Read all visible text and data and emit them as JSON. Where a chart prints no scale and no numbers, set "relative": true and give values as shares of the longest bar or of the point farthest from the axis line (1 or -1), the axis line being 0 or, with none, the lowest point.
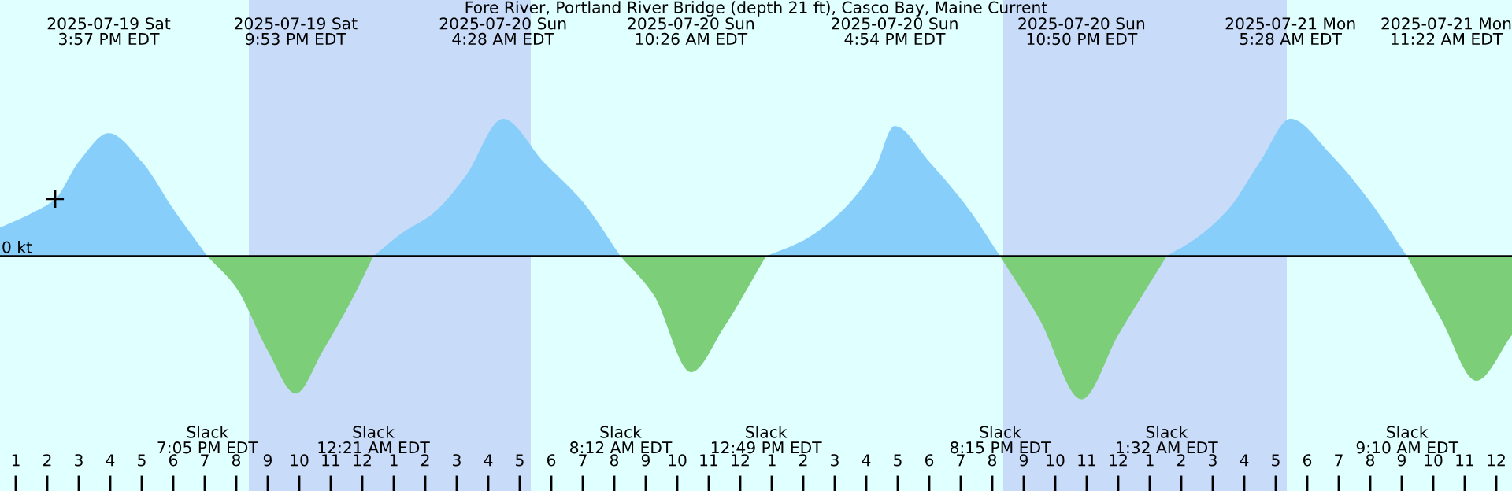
{
  "chart_data": {
    "type": "area",
    "relative": true,
    "title": "Fore River, Portland River Bridge (depth 21 ft), Casco Bay, Maine Current",
    "xlim": [
      "2025-07-19T12:30",
      "2025-07-21T12:30"
    ],
    "xticks": [
      {
        "value": "2025-07-19T13:00",
        "label": "1"
      },
      {
        "value": "2025-07-19T14:00",
        "label": "2"
      },
      {
        "value": "2025-07-19T15:00",
        "label": "3"
      },
      {
        "value": "2025-07-19T16:00",
        "label": "4"
      },
      {
        "value": "2025-07-19T17:00",
        "label": "5"
      },
      {
        "value": "2025-07-19T18:00",
        "label": "6"
      },
      {
        "value": "2025-07-19T19:00",
        "label": "7"
      },
      {
        "value": "2025-07-19T20:00",
        "label": "8"
      },
      {
        "value": "2025-07-19T21:00",
        "label": "9"
      },
      {
        "value": "2025-07-19T22:00",
        "label": "10"
      },
      {
        "value": "2025-07-19T23:00",
        "label": "11"
      },
      {
        "value": "2025-07-20T00:00",
        "label": "12"
      },
      {
        "value": "2025-07-20T01:00",
        "label": "1"
      },
      {
        "value": "2025-07-20T02:00",
        "label": "2"
      },
      {
        "value": "2025-07-20T03:00",
        "label": "3"
      },
      {
        "value": "2025-07-20T04:00",
        "label": "4"
      },
      {
        "value": "2025-07-20T05:00",
        "label": "5"
      },
      {
        "value": "2025-07-20T06:00",
        "label": "6"
      },
      {
        "value": "2025-07-20T07:00",
        "label": "7"
      },
      {
        "value": "2025-07-20T08:00",
        "label": "8"
      },
      {
        "value": "2025-07-20T09:00",
        "label": "9"
      },
      {
        "value": "2025-07-20T10:00",
        "label": "10"
      },
      {
        "value": "2025-07-20T11:00",
        "label": "11"
      },
      {
        "value": "2025-07-20T12:00",
        "label": "12"
      },
      {
        "value": "2025-07-20T13:00",
        "label": "1"
      },
      {
        "value": "2025-07-20T14:00",
        "label": "2"
      },
      {
        "value": "2025-07-20T15:00",
        "label": "3"
      },
      {
        "value": "2025-07-20T16:00",
        "label": "4"
      },
      {
        "value": "2025-07-20T17:00",
        "label": "5"
      },
      {
        "value": "2025-07-20T18:00",
        "label": "6"
      },
      {
        "value": "2025-07-20T19:00",
        "label": "7"
      },
      {
        "value": "2025-07-20T20:00",
        "label": "8"
      },
      {
        "value": "2025-07-20T21:00",
        "label": "9"
      },
      {
        "value": "2025-07-20T22:00",
        "label": "10"
      },
      {
        "value": "2025-07-20T23:00",
        "label": "11"
      },
      {
        "value": "2025-07-21T00:00",
        "label": "12"
      },
      {
        "value": "2025-07-21T01:00",
        "label": "1"
      },
      {
        "value": "2025-07-21T02:00",
        "label": "2"
      },
      {
        "value": "2025-07-21T03:00",
        "label": "3"
      },
      {
        "value": "2025-07-21T04:00",
        "label": "4"
      },
      {
        "value": "2025-07-21T05:00",
        "label": "5"
      },
      {
        "value": "2025-07-21T06:00",
        "label": "6"
      },
      {
        "value": "2025-07-21T07:00",
        "label": "7"
      },
      {
        "value": "2025-07-21T08:00",
        "label": "8"
      },
      {
        "value": "2025-07-21T09:00",
        "label": "9"
      },
      {
        "value": "2025-07-21T10:00",
        "label": "10"
      },
      {
        "value": "2025-07-21T11:00",
        "label": "11"
      },
      {
        "value": "2025-07-21T12:00",
        "label": "12"
      }
    ],
    "bands": [
      {
        "axis": "x",
        "from": "2025-07-19T20:24",
        "to": "2025-07-20T05:21",
        "color": "#c8dcfa"
      },
      {
        "axis": "x",
        "from": "2025-07-20T20:21",
        "to": "2025-07-21T05:21",
        "color": "#c8dcfa"
      }
    ],
    "ref_lines": [
      {
        "axis": "y",
        "value": 0,
        "label": "0 kt",
        "color": "#000000"
      }
    ],
    "series": [
      {
        "color": "#87cefa",
        "x": [
          "2025-07-19T12:30",
          "2025-07-19T13:30",
          "2025-07-19T14:15",
          "2025-07-19T15:00",
          "2025-07-19T15:57",
          "2025-07-19T17:00",
          "2025-07-19T18:00",
          "2025-07-19T19:05",
          null,
          "2025-07-20T00:21",
          "2025-07-20T01:15",
          "2025-07-20T02:15",
          "2025-07-20T03:15",
          "2025-07-20T04:28",
          "2025-07-20T05:45",
          "2025-07-20T07:00",
          "2025-07-20T08:12",
          null,
          "2025-07-20T12:49",
          "2025-07-20T14:00",
          "2025-07-20T15:00",
          "2025-07-20T16:15",
          "2025-07-20T16:54",
          "2025-07-20T18:00",
          "2025-07-20T19:15",
          "2025-07-20T20:15",
          null,
          "2025-07-21T01:32",
          "2025-07-21T02:30",
          "2025-07-21T03:30",
          "2025-07-21T04:30",
          "2025-07-21T05:28",
          "2025-07-21T06:45",
          "2025-07-21T08:00",
          "2025-07-21T09:10"
        ],
        "values": [
          0.2,
          0.3,
          0.4,
          0.66,
          0.86,
          0.66,
          0.33,
          0,
          null,
          0,
          0.16,
          0.3,
          0.55,
          0.96,
          0.66,
          0.38,
          0,
          null,
          0,
          0.11,
          0.27,
          0.6,
          0.91,
          0.66,
          0.33,
          0,
          null,
          0,
          0.13,
          0.33,
          0.66,
          0.96,
          0.71,
          0.38,
          0
        ]
      },
      {
        "color": "#7ccf78",
        "x": [
          "2025-07-19T19:05",
          "2025-07-19T20:00",
          "2025-07-19T21:00",
          "2025-07-19T21:53",
          "2025-07-19T22:45",
          "2025-07-19T23:45",
          "2025-07-20T00:21",
          null,
          "2025-07-20T08:12",
          "2025-07-20T09:15",
          "2025-07-20T10:26",
          "2025-07-20T11:30",
          "2025-07-20T12:49",
          null,
          "2025-07-20T20:15",
          "2025-07-20T21:30",
          "2025-07-20T22:50",
          "2025-07-21T00:00",
          "2025-07-21T01:32",
          null,
          "2025-07-21T09:10",
          "2025-07-21T10:15",
          "2025-07-21T11:22",
          "2025-07-21T12:30"
        ],
        "values": [
          0,
          -0.22,
          -0.66,
          -0.96,
          -0.66,
          -0.27,
          0,
          null,
          0,
          -0.27,
          -0.81,
          -0.49,
          0,
          null,
          0,
          -0.44,
          -1.0,
          -0.55,
          0,
          null,
          0,
          -0.44,
          -0.87,
          -0.55
        ]
      },
      {
        "type": "scatter",
        "color": "#000000",
        "marker": "cross",
        "x": [
          "2025-07-19T14:15"
        ],
        "values": [
          0.4
        ]
      }
    ],
    "annotations": [
      "2025-07-19 Sat\n3:57 PM EDT",
      "Slack\n7:05 PM EDT",
      "2025-07-19 Sat\n9:53 PM EDT",
      "Slack\n12:21 AM EDT",
      "2025-07-20 Sun\n4:28 AM EDT",
      "Slack\n8:12 AM EDT",
      "2025-07-20 Sun\n10:26 AM EDT",
      "Slack\n12:49 PM EDT",
      "2025-07-20 Sun\n4:54 PM EDT",
      "Slack\n8:15 PM EDT",
      "2025-07-20 Sun\n10:50 PM EDT",
      "Slack\n1:32 AM EDT",
      "2025-07-21 Mon\n5:28 AM EDT",
      "Slack\n9:10 AM EDT",
      "2025-07-21 Mon\n11:22 AM EDT"
    ]
  }
}
